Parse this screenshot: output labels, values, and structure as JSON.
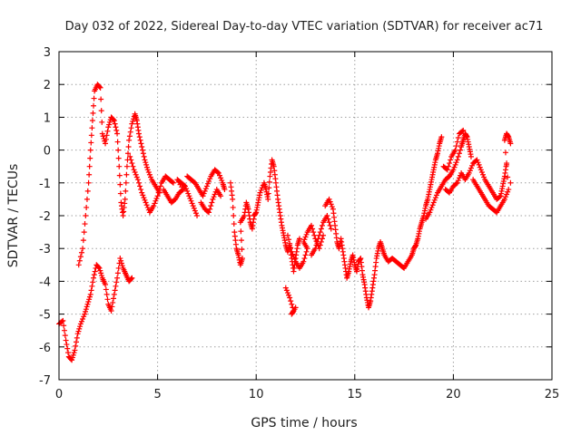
{
  "chart_data": {
    "type": "scatter",
    "title": "Day 032 of 2022, Sidereal Day-to-day VTEC variation (SDTVAR) for receiver ac71",
    "xlabel": "GPS time / hours",
    "ylabel": "SDTVAR / TECUs",
    "xlim": [
      0,
      25
    ],
    "ylim": [
      -7,
      3
    ],
    "xticks": [
      "0",
      "5",
      "10",
      "15",
      "20",
      "25"
    ],
    "yticks": [
      "-7",
      "-6",
      "-5",
      "-4",
      "-3",
      "-2",
      "-1",
      "0",
      "1",
      "2",
      "3"
    ],
    "grid": true,
    "marker": "plus",
    "color": "#ff0000",
    "series": [
      {
        "name": "SDTVAR",
        "points": [
          [
            0.0,
            -5.3
          ],
          [
            0.2,
            -5.2
          ],
          [
            0.35,
            -5.8
          ],
          [
            0.5,
            -6.3
          ],
          [
            0.65,
            -6.4
          ],
          [
            0.8,
            -6.1
          ],
          [
            0.95,
            -5.6
          ],
          [
            1.1,
            -5.3
          ],
          [
            1.3,
            -5.0
          ],
          [
            1.45,
            -4.7
          ],
          [
            1.6,
            -4.4
          ],
          [
            1.75,
            -3.9
          ],
          [
            1.9,
            -3.5
          ],
          [
            2.05,
            -3.6
          ],
          [
            2.2,
            -3.9
          ],
          [
            2.35,
            -4.1
          ],
          [
            2.5,
            -4.7
          ],
          [
            2.65,
            -4.9
          ],
          [
            2.8,
            -4.4
          ],
          [
            2.95,
            -3.9
          ],
          [
            3.1,
            -3.3
          ],
          [
            3.25,
            -3.6
          ],
          [
            3.4,
            -3.8
          ],
          [
            3.55,
            -4.0
          ],
          [
            3.7,
            -3.9
          ],
          [
            1.0,
            -3.5
          ],
          [
            1.2,
            -3.0
          ],
          [
            1.35,
            -2.0
          ],
          [
            1.5,
            -1.0
          ],
          [
            1.6,
            0.0
          ],
          [
            1.7,
            0.9
          ],
          [
            1.8,
            1.8
          ],
          [
            1.95,
            2.0
          ],
          [
            2.1,
            1.9
          ],
          [
            2.2,
            0.5
          ],
          [
            2.35,
            0.2
          ],
          [
            2.5,
            0.7
          ],
          [
            2.65,
            1.0
          ],
          [
            2.8,
            0.9
          ],
          [
            2.95,
            0.5
          ],
          [
            3.05,
            -0.5
          ],
          [
            3.15,
            -1.6
          ],
          [
            3.25,
            -2.0
          ],
          [
            3.35,
            -1.5
          ],
          [
            3.45,
            -0.5
          ],
          [
            3.55,
            0.3
          ],
          [
            3.7,
            0.8
          ],
          [
            3.85,
            1.1
          ],
          [
            3.95,
            0.9
          ],
          [
            4.05,
            0.5
          ],
          [
            4.2,
            0.1
          ],
          [
            4.35,
            -0.3
          ],
          [
            4.5,
            -0.6
          ],
          [
            4.7,
            -0.9
          ],
          [
            4.9,
            -1.1
          ],
          [
            5.1,
            -1.3
          ],
          [
            3.6,
            -0.2
          ],
          [
            3.8,
            -0.6
          ],
          [
            4.0,
            -0.9
          ],
          [
            4.2,
            -1.3
          ],
          [
            4.4,
            -1.6
          ],
          [
            4.6,
            -1.9
          ],
          [
            4.8,
            -1.7
          ],
          [
            5.0,
            -1.4
          ],
          [
            5.2,
            -1.0
          ],
          [
            5.4,
            -0.8
          ],
          [
            5.6,
            -0.9
          ],
          [
            5.8,
            -1.0
          ],
          [
            5.3,
            -1.2
          ],
          [
            5.5,
            -1.4
          ],
          [
            5.7,
            -1.6
          ],
          [
            5.9,
            -1.5
          ],
          [
            6.1,
            -1.3
          ],
          [
            6.3,
            -1.2
          ],
          [
            6.0,
            -0.9
          ],
          [
            6.2,
            -1.0
          ],
          [
            6.4,
            -1.1
          ],
          [
            6.6,
            -1.4
          ],
          [
            6.8,
            -1.7
          ],
          [
            7.0,
            -2.0
          ],
          [
            6.5,
            -0.8
          ],
          [
            6.7,
            -0.9
          ],
          [
            6.9,
            -1.0
          ],
          [
            7.1,
            -1.2
          ],
          [
            7.3,
            -1.4
          ],
          [
            7.5,
            -1.1
          ],
          [
            7.7,
            -0.8
          ],
          [
            7.9,
            -0.6
          ],
          [
            8.1,
            -0.7
          ],
          [
            8.3,
            -1.0
          ],
          [
            8.4,
            -1.2
          ],
          [
            7.2,
            -1.6
          ],
          [
            7.4,
            -1.8
          ],
          [
            7.6,
            -1.9
          ],
          [
            7.8,
            -1.5
          ],
          [
            8.0,
            -1.2
          ],
          [
            8.2,
            -1.4
          ],
          [
            8.7,
            -1.0
          ],
          [
            8.8,
            -1.5
          ],
          [
            8.9,
            -2.5
          ],
          [
            9.0,
            -3.0
          ],
          [
            9.1,
            -3.2
          ],
          [
            9.2,
            -3.5
          ],
          [
            9.3,
            -3.3
          ],
          [
            9.2,
            -2.2
          ],
          [
            9.4,
            -2.0
          ],
          [
            9.5,
            -1.6
          ],
          [
            9.6,
            -1.8
          ],
          [
            9.7,
            -2.2
          ],
          [
            9.8,
            -2.4
          ],
          [
            9.9,
            -2.0
          ],
          [
            10.0,
            -1.9
          ],
          [
            10.1,
            -1.6
          ],
          [
            10.2,
            -1.3
          ],
          [
            10.4,
            -1.0
          ],
          [
            10.5,
            -1.2
          ],
          [
            10.6,
            -1.5
          ],
          [
            10.7,
            -0.8
          ],
          [
            10.8,
            -0.3
          ],
          [
            10.9,
            -0.5
          ],
          [
            11.0,
            -1.0
          ],
          [
            11.1,
            -1.5
          ],
          [
            11.2,
            -1.9
          ],
          [
            11.3,
            -2.3
          ],
          [
            11.4,
            -2.6
          ],
          [
            11.5,
            -2.9
          ],
          [
            11.6,
            -3.1
          ],
          [
            11.7,
            -2.9
          ],
          [
            11.8,
            -3.3
          ],
          [
            11.9,
            -3.7
          ],
          [
            12.0,
            -3.3
          ],
          [
            12.1,
            -2.9
          ],
          [
            12.2,
            -2.7
          ],
          [
            11.5,
            -4.2
          ],
          [
            11.7,
            -4.5
          ],
          [
            11.9,
            -4.9
          ],
          [
            11.8,
            -5.0
          ],
          [
            12.0,
            -4.8
          ],
          [
            11.6,
            -2.6
          ],
          [
            11.8,
            -3.1
          ],
          [
            12.0,
            -3.4
          ],
          [
            12.2,
            -3.6
          ],
          [
            12.4,
            -3.4
          ],
          [
            12.6,
            -3.0
          ],
          [
            12.4,
            -2.8
          ],
          [
            12.6,
            -2.5
          ],
          [
            12.8,
            -2.3
          ],
          [
            13.0,
            -2.7
          ],
          [
            13.2,
            -3.0
          ],
          [
            13.4,
            -2.6
          ],
          [
            12.8,
            -3.2
          ],
          [
            13.0,
            -3.0
          ],
          [
            13.2,
            -2.6
          ],
          [
            13.4,
            -2.2
          ],
          [
            13.6,
            -2.0
          ],
          [
            13.8,
            -2.4
          ],
          [
            13.5,
            -1.7
          ],
          [
            13.7,
            -1.5
          ],
          [
            13.9,
            -1.8
          ],
          [
            14.0,
            -2.3
          ],
          [
            14.1,
            -2.8
          ],
          [
            14.2,
            -3.0
          ],
          [
            14.3,
            -2.7
          ],
          [
            14.4,
            -3.1
          ],
          [
            14.5,
            -3.5
          ],
          [
            14.6,
            -3.9
          ],
          [
            14.7,
            -3.7
          ],
          [
            14.8,
            -3.4
          ],
          [
            14.9,
            -3.2
          ],
          [
            15.0,
            -3.5
          ],
          [
            15.1,
            -3.7
          ],
          [
            15.2,
            -3.4
          ],
          [
            15.3,
            -3.3
          ],
          [
            15.4,
            -3.8
          ],
          [
            15.5,
            -4.1
          ],
          [
            15.6,
            -4.5
          ],
          [
            15.7,
            -4.8
          ],
          [
            15.8,
            -4.6
          ],
          [
            15.9,
            -4.2
          ],
          [
            16.0,
            -3.8
          ],
          [
            16.1,
            -3.3
          ],
          [
            16.2,
            -3.0
          ],
          [
            16.3,
            -2.8
          ],
          [
            16.4,
            -3.0
          ],
          [
            16.5,
            -3.2
          ],
          [
            16.7,
            -3.4
          ],
          [
            16.9,
            -3.3
          ],
          [
            17.1,
            -3.4
          ],
          [
            17.3,
            -3.5
          ],
          [
            17.5,
            -3.6
          ],
          [
            17.7,
            -3.4
          ],
          [
            17.9,
            -3.2
          ],
          [
            18.0,
            -3.0
          ],
          [
            18.1,
            -2.9
          ],
          [
            18.2,
            -2.7
          ],
          [
            18.3,
            -2.4
          ],
          [
            18.4,
            -2.2
          ],
          [
            18.5,
            -2.0
          ],
          [
            18.6,
            -1.7
          ],
          [
            18.7,
            -1.5
          ],
          [
            18.8,
            -1.2
          ],
          [
            18.9,
            -0.9
          ],
          [
            19.0,
            -0.6
          ],
          [
            19.1,
            -0.3
          ],
          [
            19.2,
            -0.1
          ],
          [
            19.3,
            0.2
          ],
          [
            19.4,
            0.4
          ],
          [
            18.6,
            -2.1
          ],
          [
            18.8,
            -1.9
          ],
          [
            19.0,
            -1.6
          ],
          [
            19.2,
            -1.3
          ],
          [
            19.4,
            -1.1
          ],
          [
            19.6,
            -0.9
          ],
          [
            19.8,
            -0.8
          ],
          [
            20.0,
            -0.6
          ],
          [
            20.2,
            -0.3
          ],
          [
            20.4,
            0.1
          ],
          [
            20.5,
            0.3
          ],
          [
            20.6,
            0.5
          ],
          [
            20.7,
            0.4
          ],
          [
            20.8,
            0.1
          ],
          [
            20.9,
            -0.2
          ],
          [
            19.5,
            -0.5
          ],
          [
            19.7,
            -0.6
          ],
          [
            19.9,
            -0.2
          ],
          [
            20.1,
            0.0
          ],
          [
            20.3,
            0.5
          ],
          [
            20.5,
            0.6
          ],
          [
            19.6,
            -1.2
          ],
          [
            19.8,
            -1.3
          ],
          [
            20.0,
            -1.1
          ],
          [
            20.2,
            -1.0
          ],
          [
            20.4,
            -0.7
          ],
          [
            20.6,
            -0.9
          ],
          [
            20.8,
            -0.7
          ],
          [
            21.0,
            -0.4
          ],
          [
            21.2,
            -0.3
          ],
          [
            21.4,
            -0.6
          ],
          [
            21.6,
            -0.9
          ],
          [
            21.8,
            -1.1
          ],
          [
            22.0,
            -1.3
          ],
          [
            22.2,
            -1.5
          ],
          [
            22.4,
            -1.4
          ],
          [
            22.5,
            -1.1
          ],
          [
            22.6,
            -0.8
          ],
          [
            22.7,
            -0.4
          ],
          [
            21.0,
            -0.9
          ],
          [
            21.2,
            -1.1
          ],
          [
            21.4,
            -1.3
          ],
          [
            21.6,
            -1.5
          ],
          [
            21.8,
            -1.7
          ],
          [
            22.0,
            -1.8
          ],
          [
            22.2,
            -1.9
          ],
          [
            22.4,
            -1.7
          ],
          [
            22.6,
            -1.5
          ],
          [
            22.8,
            -1.2
          ],
          [
            22.6,
            0.3
          ],
          [
            22.7,
            0.5
          ],
          [
            22.8,
            0.4
          ],
          [
            22.9,
            0.2
          ],
          [
            22.9,
            -1.0
          ]
        ]
      }
    ]
  }
}
